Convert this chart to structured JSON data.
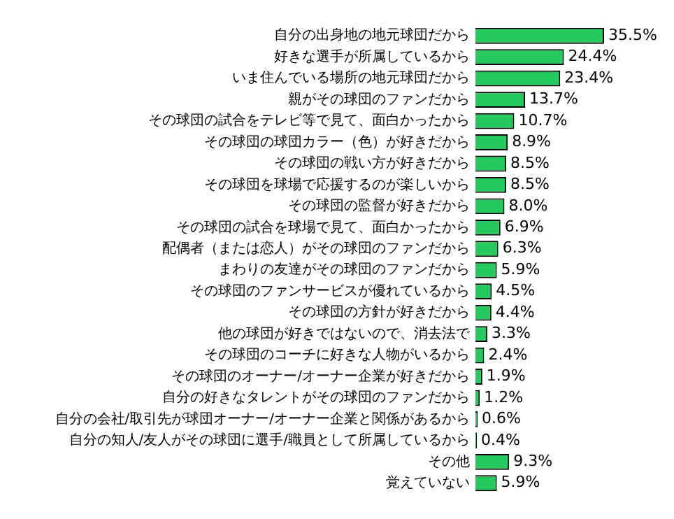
{
  "chart_data": {
    "type": "bar",
    "orientation": "horizontal",
    "categories": [
      "自分の出身地の地元球団だから",
      "好きな選手が所属しているから",
      "いま住んでいる場所の地元球団だから",
      "親がその球団のファンだから",
      "その球団の試合をテレビ等で見て、面白かったから",
      "その球団の球団カラー（色）が好きだから",
      "その球団の戦い方が好きだから",
      "その球団を球場で応援するのが楽しいから",
      "その球団の監督が好きだから",
      "その球団の試合を球場で見て、面白かったから",
      "配偶者（または恋人）がその球団のファンだから",
      "まわりの友達がその球団のファンだから",
      "その球団のファンサービスが優れているから",
      "その球団の方針が好きだから",
      "他の球団が好きではないので、消去法で",
      "その球団のコーチに好きな人物がいるから",
      "その球団のオーナー/オーナー企業が好きだから",
      "自分の好きなタレントがその球団のファンだから",
      "自分の会社/取引先が球団オーナー/オーナー企業と関係があるから",
      "自分の知人/友人がその球団に選手/職員として所属しているから",
      "その他",
      "覚えていない"
    ],
    "values": [
      35.5,
      24.4,
      23.4,
      13.7,
      10.7,
      8.9,
      8.5,
      8.5,
      8.0,
      6.9,
      6.3,
      5.9,
      4.5,
      4.4,
      3.3,
      2.4,
      1.9,
      1.2,
      0.6,
      0.4,
      9.3,
      5.9
    ],
    "value_labels": [
      "35.5%",
      "24.4%",
      "23.4%",
      "13.7%",
      "10.7%",
      "8.9%",
      "8.5%",
      "8.5%",
      "8.0%",
      "6.9%",
      "6.3%",
      "5.9%",
      "4.5%",
      "4.4%",
      "3.3%",
      "2.4%",
      "1.9%",
      "1.2%",
      "0.6%",
      "0.4%",
      "9.3%",
      "5.9%"
    ],
    "color": "#26c95e",
    "grid": false,
    "legend": false
  }
}
